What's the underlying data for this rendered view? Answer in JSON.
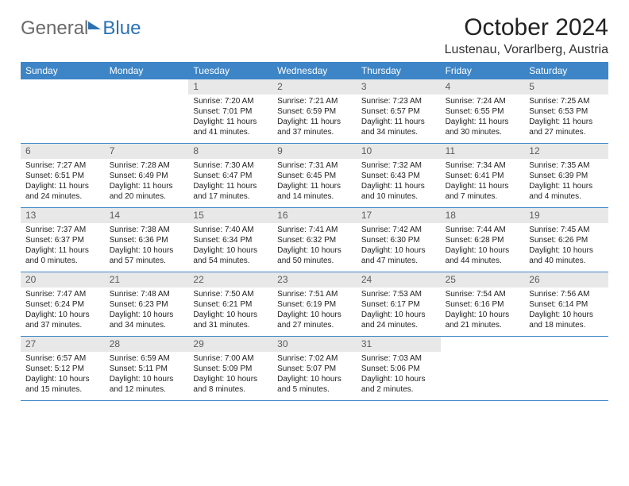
{
  "brand": {
    "part1": "General",
    "part2": "Blue"
  },
  "title": "October 2024",
  "location": "Lustenau, Vorarlberg, Austria",
  "colors": {
    "header_bg": "#3d85c6",
    "daynum_bg": "#e8e8e8",
    "daynum_fg": "#5c5c5c",
    "rule": "#3d85c6",
    "brand_gray": "#6a6a6a",
    "brand_blue": "#2a72b5"
  },
  "weekdays": [
    "Sunday",
    "Monday",
    "Tuesday",
    "Wednesday",
    "Thursday",
    "Friday",
    "Saturday"
  ],
  "weeks": [
    [
      null,
      null,
      {
        "n": "1",
        "sr": "Sunrise: 7:20 AM",
        "ss": "Sunset: 7:01 PM",
        "d1": "Daylight: 11 hours",
        "d2": "and 41 minutes."
      },
      {
        "n": "2",
        "sr": "Sunrise: 7:21 AM",
        "ss": "Sunset: 6:59 PM",
        "d1": "Daylight: 11 hours",
        "d2": "and 37 minutes."
      },
      {
        "n": "3",
        "sr": "Sunrise: 7:23 AM",
        "ss": "Sunset: 6:57 PM",
        "d1": "Daylight: 11 hours",
        "d2": "and 34 minutes."
      },
      {
        "n": "4",
        "sr": "Sunrise: 7:24 AM",
        "ss": "Sunset: 6:55 PM",
        "d1": "Daylight: 11 hours",
        "d2": "and 30 minutes."
      },
      {
        "n": "5",
        "sr": "Sunrise: 7:25 AM",
        "ss": "Sunset: 6:53 PM",
        "d1": "Daylight: 11 hours",
        "d2": "and 27 minutes."
      }
    ],
    [
      {
        "n": "6",
        "sr": "Sunrise: 7:27 AM",
        "ss": "Sunset: 6:51 PM",
        "d1": "Daylight: 11 hours",
        "d2": "and 24 minutes."
      },
      {
        "n": "7",
        "sr": "Sunrise: 7:28 AM",
        "ss": "Sunset: 6:49 PM",
        "d1": "Daylight: 11 hours",
        "d2": "and 20 minutes."
      },
      {
        "n": "8",
        "sr": "Sunrise: 7:30 AM",
        "ss": "Sunset: 6:47 PM",
        "d1": "Daylight: 11 hours",
        "d2": "and 17 minutes."
      },
      {
        "n": "9",
        "sr": "Sunrise: 7:31 AM",
        "ss": "Sunset: 6:45 PM",
        "d1": "Daylight: 11 hours",
        "d2": "and 14 minutes."
      },
      {
        "n": "10",
        "sr": "Sunrise: 7:32 AM",
        "ss": "Sunset: 6:43 PM",
        "d1": "Daylight: 11 hours",
        "d2": "and 10 minutes."
      },
      {
        "n": "11",
        "sr": "Sunrise: 7:34 AM",
        "ss": "Sunset: 6:41 PM",
        "d1": "Daylight: 11 hours",
        "d2": "and 7 minutes."
      },
      {
        "n": "12",
        "sr": "Sunrise: 7:35 AM",
        "ss": "Sunset: 6:39 PM",
        "d1": "Daylight: 11 hours",
        "d2": "and 4 minutes."
      }
    ],
    [
      {
        "n": "13",
        "sr": "Sunrise: 7:37 AM",
        "ss": "Sunset: 6:37 PM",
        "d1": "Daylight: 11 hours",
        "d2": "and 0 minutes."
      },
      {
        "n": "14",
        "sr": "Sunrise: 7:38 AM",
        "ss": "Sunset: 6:36 PM",
        "d1": "Daylight: 10 hours",
        "d2": "and 57 minutes."
      },
      {
        "n": "15",
        "sr": "Sunrise: 7:40 AM",
        "ss": "Sunset: 6:34 PM",
        "d1": "Daylight: 10 hours",
        "d2": "and 54 minutes."
      },
      {
        "n": "16",
        "sr": "Sunrise: 7:41 AM",
        "ss": "Sunset: 6:32 PM",
        "d1": "Daylight: 10 hours",
        "d2": "and 50 minutes."
      },
      {
        "n": "17",
        "sr": "Sunrise: 7:42 AM",
        "ss": "Sunset: 6:30 PM",
        "d1": "Daylight: 10 hours",
        "d2": "and 47 minutes."
      },
      {
        "n": "18",
        "sr": "Sunrise: 7:44 AM",
        "ss": "Sunset: 6:28 PM",
        "d1": "Daylight: 10 hours",
        "d2": "and 44 minutes."
      },
      {
        "n": "19",
        "sr": "Sunrise: 7:45 AM",
        "ss": "Sunset: 6:26 PM",
        "d1": "Daylight: 10 hours",
        "d2": "and 40 minutes."
      }
    ],
    [
      {
        "n": "20",
        "sr": "Sunrise: 7:47 AM",
        "ss": "Sunset: 6:24 PM",
        "d1": "Daylight: 10 hours",
        "d2": "and 37 minutes."
      },
      {
        "n": "21",
        "sr": "Sunrise: 7:48 AM",
        "ss": "Sunset: 6:23 PM",
        "d1": "Daylight: 10 hours",
        "d2": "and 34 minutes."
      },
      {
        "n": "22",
        "sr": "Sunrise: 7:50 AM",
        "ss": "Sunset: 6:21 PM",
        "d1": "Daylight: 10 hours",
        "d2": "and 31 minutes."
      },
      {
        "n": "23",
        "sr": "Sunrise: 7:51 AM",
        "ss": "Sunset: 6:19 PM",
        "d1": "Daylight: 10 hours",
        "d2": "and 27 minutes."
      },
      {
        "n": "24",
        "sr": "Sunrise: 7:53 AM",
        "ss": "Sunset: 6:17 PM",
        "d1": "Daylight: 10 hours",
        "d2": "and 24 minutes."
      },
      {
        "n": "25",
        "sr": "Sunrise: 7:54 AM",
        "ss": "Sunset: 6:16 PM",
        "d1": "Daylight: 10 hours",
        "d2": "and 21 minutes."
      },
      {
        "n": "26",
        "sr": "Sunrise: 7:56 AM",
        "ss": "Sunset: 6:14 PM",
        "d1": "Daylight: 10 hours",
        "d2": "and 18 minutes."
      }
    ],
    [
      {
        "n": "27",
        "sr": "Sunrise: 6:57 AM",
        "ss": "Sunset: 5:12 PM",
        "d1": "Daylight: 10 hours",
        "d2": "and 15 minutes."
      },
      {
        "n": "28",
        "sr": "Sunrise: 6:59 AM",
        "ss": "Sunset: 5:11 PM",
        "d1": "Daylight: 10 hours",
        "d2": "and 12 minutes."
      },
      {
        "n": "29",
        "sr": "Sunrise: 7:00 AM",
        "ss": "Sunset: 5:09 PM",
        "d1": "Daylight: 10 hours",
        "d2": "and 8 minutes."
      },
      {
        "n": "30",
        "sr": "Sunrise: 7:02 AM",
        "ss": "Sunset: 5:07 PM",
        "d1": "Daylight: 10 hours",
        "d2": "and 5 minutes."
      },
      {
        "n": "31",
        "sr": "Sunrise: 7:03 AM",
        "ss": "Sunset: 5:06 PM",
        "d1": "Daylight: 10 hours",
        "d2": "and 2 minutes."
      },
      null,
      null
    ]
  ]
}
